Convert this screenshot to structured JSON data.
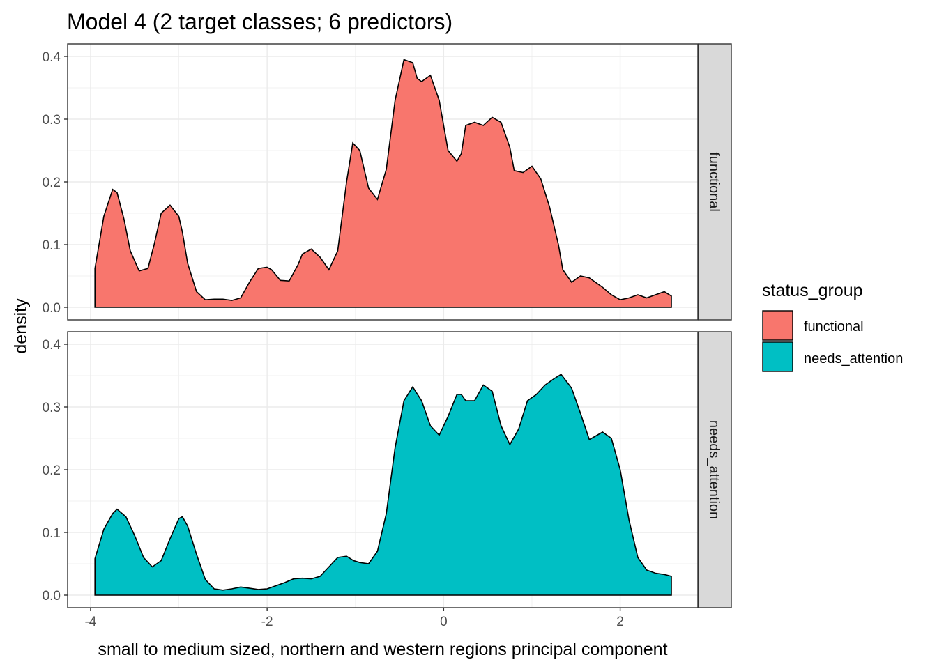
{
  "chart_data": {
    "type": "area",
    "title": "Model 4 (2 target classes; 6 predictors)",
    "xlabel": "small to medium sized, northern and western regions principal component",
    "ylabel": "density",
    "xlim": [
      -4.26,
      2.88
    ],
    "ylim": [
      -0.02,
      0.42
    ],
    "x_ticks": [
      -4,
      -2,
      0,
      2
    ],
    "x_tick_labels": [
      "-4",
      "-2",
      "0",
      "2"
    ],
    "y_ticks": [
      0,
      0.1,
      0.2,
      0.3,
      0.4
    ],
    "y_tick_labels": [
      "0.0",
      "0.1",
      "0.2",
      "0.3",
      "0.4"
    ],
    "grid": true,
    "legend": {
      "title": "status_group",
      "position": "right",
      "items": [
        "functional",
        "needs_attention"
      ]
    },
    "facets": [
      {
        "label": "functional",
        "color": "#F8766D",
        "x": [
          -3.95,
          -3.85,
          -3.75,
          -3.7,
          -3.62,
          -3.55,
          -3.45,
          -3.35,
          -3.28,
          -3.2,
          -3.1,
          -3.0,
          -2.96,
          -2.9,
          -2.8,
          -2.7,
          -2.6,
          -2.5,
          -2.4,
          -2.3,
          -2.2,
          -2.1,
          -2.0,
          -1.95,
          -1.85,
          -1.75,
          -1.65,
          -1.6,
          -1.5,
          -1.4,
          -1.3,
          -1.2,
          -1.1,
          -1.03,
          -0.95,
          -0.85,
          -0.75,
          -0.65,
          -0.55,
          -0.45,
          -0.35,
          -0.3,
          -0.25,
          -0.15,
          -0.05,
          0.05,
          0.15,
          0.2,
          0.25,
          0.35,
          0.45,
          0.55,
          0.65,
          0.75,
          0.8,
          0.9,
          1.0,
          1.1,
          1.2,
          1.3,
          1.35,
          1.45,
          1.55,
          1.65,
          1.8,
          1.9,
          2.0,
          2.1,
          2.2,
          2.3,
          2.4,
          2.5,
          2.58
        ],
        "y": [
          0.062,
          0.145,
          0.188,
          0.183,
          0.14,
          0.09,
          0.058,
          0.062,
          0.1,
          0.15,
          0.163,
          0.145,
          0.12,
          0.07,
          0.025,
          0.012,
          0.013,
          0.013,
          0.011,
          0.015,
          0.04,
          0.062,
          0.064,
          0.06,
          0.043,
          0.042,
          0.068,
          0.085,
          0.093,
          0.08,
          0.06,
          0.09,
          0.2,
          0.262,
          0.25,
          0.19,
          0.172,
          0.22,
          0.33,
          0.395,
          0.39,
          0.365,
          0.36,
          0.37,
          0.33,
          0.25,
          0.233,
          0.245,
          0.29,
          0.295,
          0.29,
          0.303,
          0.295,
          0.255,
          0.218,
          0.215,
          0.225,
          0.205,
          0.16,
          0.1,
          0.06,
          0.04,
          0.05,
          0.047,
          0.032,
          0.02,
          0.012,
          0.015,
          0.02,
          0.015,
          0.02,
          0.025,
          0.018
        ]
      },
      {
        "label": "needs_attention",
        "color": "#00BFC4",
        "x": [
          -3.95,
          -3.85,
          -3.75,
          -3.7,
          -3.6,
          -3.5,
          -3.4,
          -3.3,
          -3.2,
          -3.1,
          -3.0,
          -2.96,
          -2.9,
          -2.8,
          -2.7,
          -2.6,
          -2.5,
          -2.4,
          -2.3,
          -2.2,
          -2.1,
          -2.0,
          -1.9,
          -1.8,
          -1.7,
          -1.6,
          -1.5,
          -1.4,
          -1.3,
          -1.2,
          -1.1,
          -1.02,
          -0.95,
          -0.85,
          -0.75,
          -0.65,
          -0.55,
          -0.45,
          -0.35,
          -0.25,
          -0.15,
          -0.05,
          0.05,
          0.15,
          0.2,
          0.25,
          0.35,
          0.45,
          0.55,
          0.65,
          0.75,
          0.85,
          0.95,
          1.05,
          1.15,
          1.25,
          1.33,
          1.45,
          1.55,
          1.65,
          1.8,
          1.9,
          2.0,
          2.1,
          2.2,
          2.3,
          2.4,
          2.5,
          2.58
        ],
        "y": [
          0.058,
          0.105,
          0.13,
          0.137,
          0.125,
          0.095,
          0.06,
          0.045,
          0.055,
          0.09,
          0.122,
          0.125,
          0.11,
          0.065,
          0.025,
          0.01,
          0.008,
          0.01,
          0.013,
          0.011,
          0.009,
          0.01,
          0.015,
          0.02,
          0.026,
          0.027,
          0.026,
          0.03,
          0.045,
          0.06,
          0.062,
          0.055,
          0.052,
          0.05,
          0.07,
          0.13,
          0.235,
          0.31,
          0.332,
          0.31,
          0.27,
          0.255,
          0.285,
          0.32,
          0.32,
          0.31,
          0.31,
          0.335,
          0.325,
          0.27,
          0.24,
          0.265,
          0.31,
          0.32,
          0.335,
          0.345,
          0.352,
          0.33,
          0.29,
          0.248,
          0.26,
          0.25,
          0.2,
          0.12,
          0.06,
          0.04,
          0.035,
          0.033,
          0.03
        ]
      }
    ]
  }
}
